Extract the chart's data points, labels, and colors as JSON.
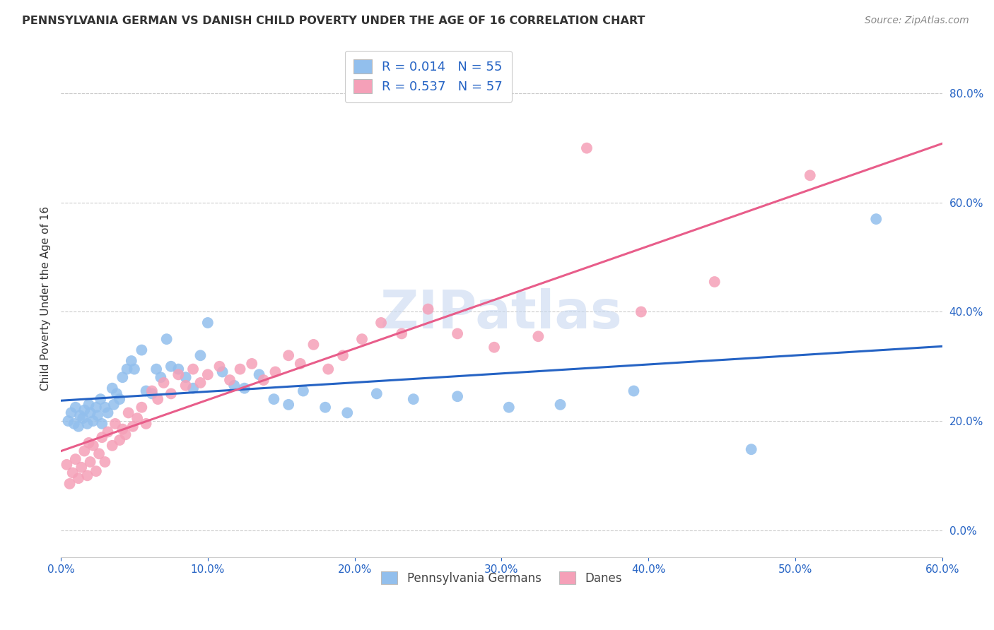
{
  "title": "PENNSYLVANIA GERMAN VS DANISH CHILD POVERTY UNDER THE AGE OF 16 CORRELATION CHART",
  "source": "Source: ZipAtlas.com",
  "ylabel": "Child Poverty Under the Age of 16",
  "xlabel_ticks": [
    "0.0%",
    "10.0%",
    "20.0%",
    "30.0%",
    "40.0%",
    "50.0%",
    "60.0%"
  ],
  "xlabel_vals": [
    0.0,
    0.1,
    0.2,
    0.3,
    0.4,
    0.5,
    0.6
  ],
  "ylabel_ticks": [
    "0.0%",
    "20.0%",
    "40.0%",
    "60.0%",
    "80.0%"
  ],
  "ylabel_vals": [
    0.0,
    0.2,
    0.4,
    0.6,
    0.8
  ],
  "xlim": [
    0.0,
    0.6
  ],
  "ylim": [
    -0.05,
    0.9
  ],
  "legend_entry1": "R = 0.014   N = 55",
  "legend_entry2": "R = 0.537   N = 57",
  "legend_label1": "Pennsylvania Germans",
  "legend_label2": "Danes",
  "blue_color": "#92BFED",
  "pink_color": "#F5A0B8",
  "blue_line_color": "#2563C4",
  "pink_line_color": "#E85D8A",
  "bg_color": "#FFFFFF",
  "grid_color": "#CCCCCC",
  "title_color": "#333333",
  "legend_text_color": "#2563C4",
  "axis_tick_color": "#2563C4",
  "watermark": "ZIPatlas",
  "watermark_color": "#C8D8F0",
  "pa_german_x": [
    0.005,
    0.007,
    0.009,
    0.01,
    0.012,
    0.013,
    0.015,
    0.016,
    0.018,
    0.019,
    0.02,
    0.022,
    0.024,
    0.025,
    0.027,
    0.028,
    0.03,
    0.032,
    0.035,
    0.036,
    0.038,
    0.04,
    0.042,
    0.045,
    0.048,
    0.05,
    0.055,
    0.058,
    0.062,
    0.065,
    0.068,
    0.072,
    0.075,
    0.08,
    0.085,
    0.09,
    0.095,
    0.1,
    0.11,
    0.118,
    0.125,
    0.135,
    0.145,
    0.155,
    0.165,
    0.18,
    0.195,
    0.215,
    0.24,
    0.27,
    0.305,
    0.34,
    0.39,
    0.47,
    0.555
  ],
  "pa_german_y": [
    0.2,
    0.215,
    0.195,
    0.225,
    0.19,
    0.21,
    0.205,
    0.22,
    0.195,
    0.23,
    0.215,
    0.2,
    0.225,
    0.21,
    0.24,
    0.195,
    0.225,
    0.215,
    0.26,
    0.23,
    0.25,
    0.24,
    0.28,
    0.295,
    0.31,
    0.295,
    0.33,
    0.255,
    0.25,
    0.295,
    0.28,
    0.35,
    0.3,
    0.295,
    0.28,
    0.26,
    0.32,
    0.38,
    0.29,
    0.265,
    0.26,
    0.285,
    0.24,
    0.23,
    0.255,
    0.225,
    0.215,
    0.25,
    0.24,
    0.245,
    0.225,
    0.23,
    0.255,
    0.148,
    0.57
  ],
  "danes_x": [
    0.004,
    0.006,
    0.008,
    0.01,
    0.012,
    0.014,
    0.016,
    0.018,
    0.019,
    0.02,
    0.022,
    0.024,
    0.026,
    0.028,
    0.03,
    0.032,
    0.035,
    0.037,
    0.04,
    0.042,
    0.044,
    0.046,
    0.049,
    0.052,
    0.055,
    0.058,
    0.062,
    0.066,
    0.07,
    0.075,
    0.08,
    0.085,
    0.09,
    0.095,
    0.1,
    0.108,
    0.115,
    0.122,
    0.13,
    0.138,
    0.146,
    0.155,
    0.163,
    0.172,
    0.182,
    0.192,
    0.205,
    0.218,
    0.232,
    0.25,
    0.27,
    0.295,
    0.325,
    0.358,
    0.395,
    0.445,
    0.51
  ],
  "danes_y": [
    0.12,
    0.085,
    0.105,
    0.13,
    0.095,
    0.115,
    0.145,
    0.1,
    0.16,
    0.125,
    0.155,
    0.108,
    0.14,
    0.17,
    0.125,
    0.18,
    0.155,
    0.195,
    0.165,
    0.185,
    0.175,
    0.215,
    0.19,
    0.205,
    0.225,
    0.195,
    0.255,
    0.24,
    0.27,
    0.25,
    0.285,
    0.265,
    0.295,
    0.27,
    0.285,
    0.3,
    0.275,
    0.295,
    0.305,
    0.275,
    0.29,
    0.32,
    0.305,
    0.34,
    0.295,
    0.32,
    0.35,
    0.38,
    0.36,
    0.405,
    0.36,
    0.335,
    0.355,
    0.7,
    0.4,
    0.455,
    0.65
  ]
}
